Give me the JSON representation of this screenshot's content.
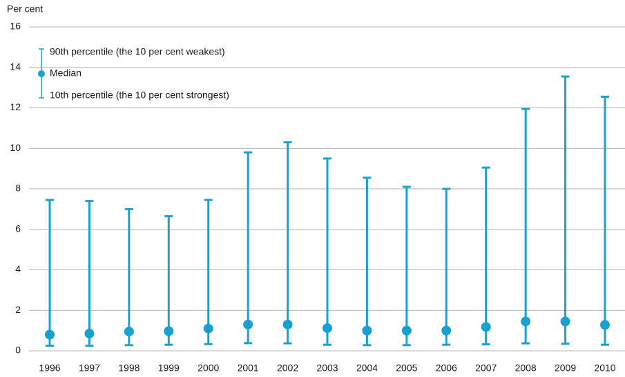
{
  "chart_data": {
    "type": "dot-range",
    "y_label": "Per cent",
    "categories": [
      "1996",
      "1997",
      "1998",
      "1999",
      "2000",
      "2001",
      "2002",
      "2003",
      "2004",
      "2005",
      "2006",
      "2007",
      "2008",
      "2009",
      "2010"
    ],
    "series": [
      {
        "name": "90th percentile (the 10 per cent weakest)",
        "color": "#1a9fd1",
        "values": [
          7.45,
          7.4,
          7.0,
          6.65,
          7.45,
          9.8,
          10.3,
          9.5,
          8.55,
          8.1,
          8.0,
          9.05,
          11.95,
          13.55,
          12.55
        ]
      },
      {
        "name": "Median",
        "color": "#1a9fd1",
        "values": [
          0.8,
          0.85,
          0.95,
          0.97,
          1.1,
          1.3,
          1.3,
          1.12,
          1.0,
          1.0,
          1.0,
          1.18,
          1.45,
          1.45,
          1.28
        ]
      },
      {
        "name": "10th percentile (the 10 per cent strongest)",
        "color": "#1a9fd1",
        "values": [
          0.25,
          0.25,
          0.28,
          0.3,
          0.33,
          0.38,
          0.37,
          0.3,
          0.28,
          0.28,
          0.3,
          0.32,
          0.37,
          0.35,
          0.3
        ]
      }
    ],
    "ylim": [
      0,
      16
    ],
    "yticks": [
      0,
      2,
      4,
      6,
      8,
      10,
      12,
      14,
      16
    ],
    "grid": true,
    "legend": "top-left"
  }
}
